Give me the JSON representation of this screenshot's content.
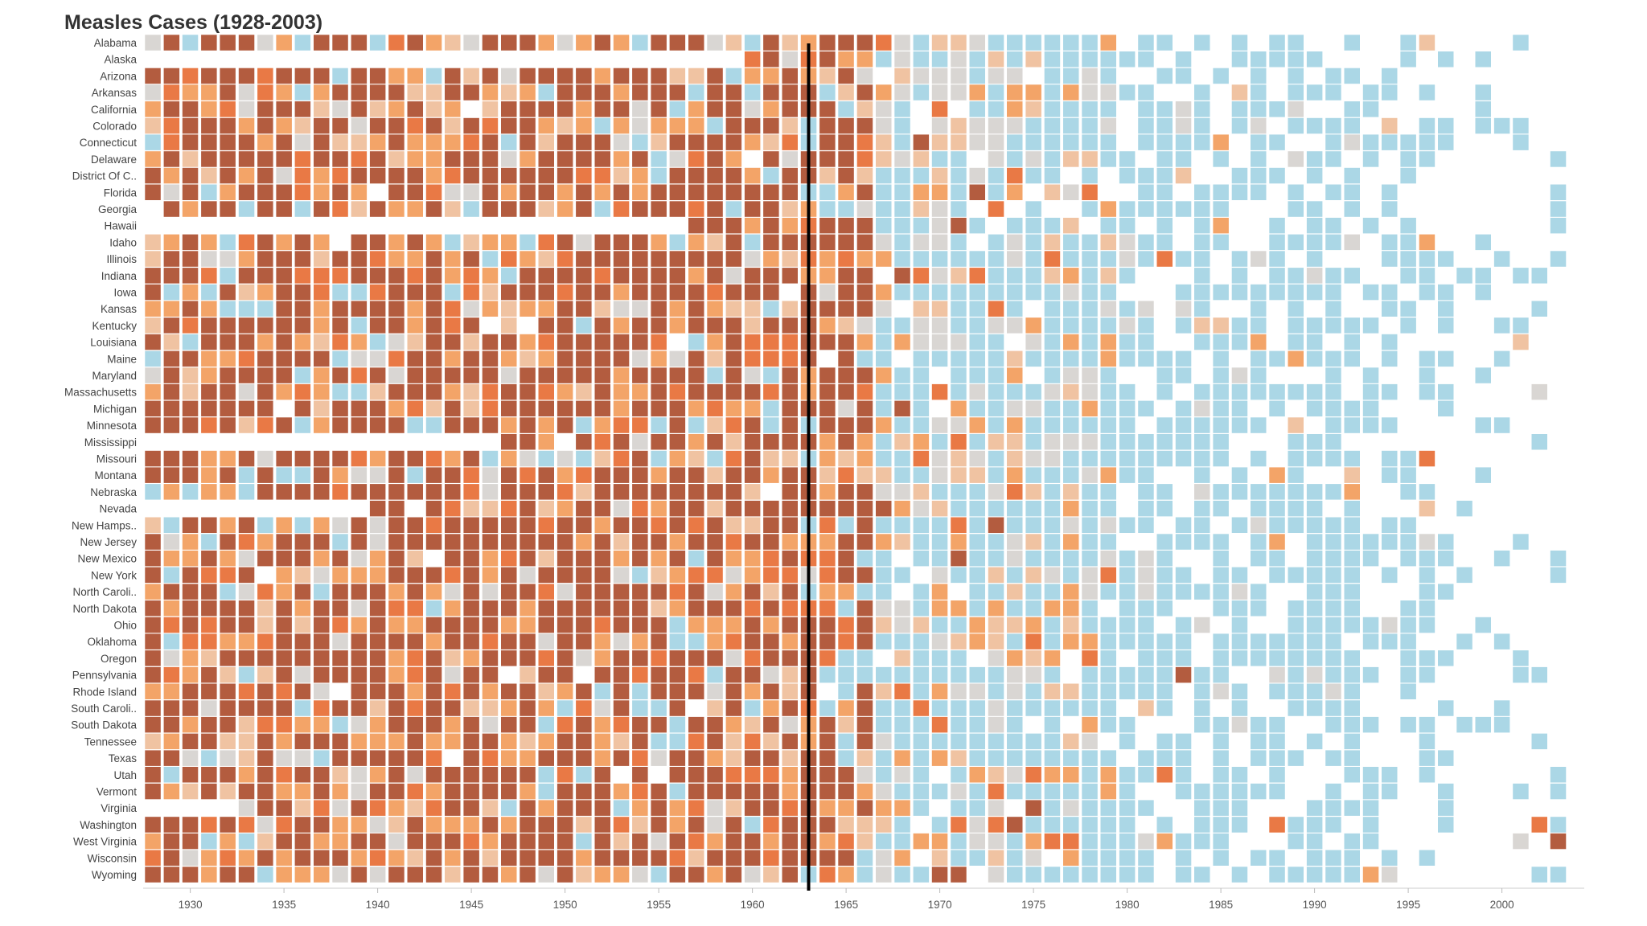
{
  "chart_data": {
    "type": "heatmap",
    "title": "Measles Cases (1928-2003)",
    "x_range": [
      1928,
      2003
    ],
    "x_ticks": [
      1930,
      1935,
      1940,
      1945,
      1950,
      1955,
      1960,
      1965,
      1970,
      1975,
      1980,
      1985,
      1990,
      1995,
      2000
    ],
    "reference_line": {
      "year": 1963
    },
    "grid": false,
    "legend": "none",
    "color_scale": {
      "low": "#abd7e6",
      "mid_low": "#d9d6d3",
      "mid": "#f0c3a2",
      "mid_high": "#f3a468",
      "high": "#e97945",
      "max": "#b35c3f"
    },
    "rows": [
      "Alabama",
      "Alaska",
      "Arizona",
      "Arkansas",
      "California",
      "Colorado",
      "Connecticut",
      "Delaware",
      "District Of C..",
      "Florida",
      "Georgia",
      "Hawaii",
      "Idaho",
      "Illinois",
      "Indiana",
      "Iowa",
      "Kansas",
      "Kentucky",
      "Louisiana",
      "Maine",
      "Maryland",
      "Massachusetts",
      "Michigan",
      "Minnesota",
      "Mississippi",
      "Missouri",
      "Montana",
      "Nebraska",
      "Nevada",
      "New Hamps..",
      "New Jersey",
      "New Mexico",
      "New York",
      "North Caroli..",
      "North Dakota",
      "Ohio",
      "Oklahoma",
      "Oregon",
      "Pennsylvania",
      "Rhode Island",
      "South Caroli..",
      "South Dakota",
      "Tennessee",
      "Texas",
      "Utah",
      "Vermont",
      "Virginia",
      "Washington",
      "West Virginia",
      "Wisconsin",
      "Wyoming"
    ]
  }
}
